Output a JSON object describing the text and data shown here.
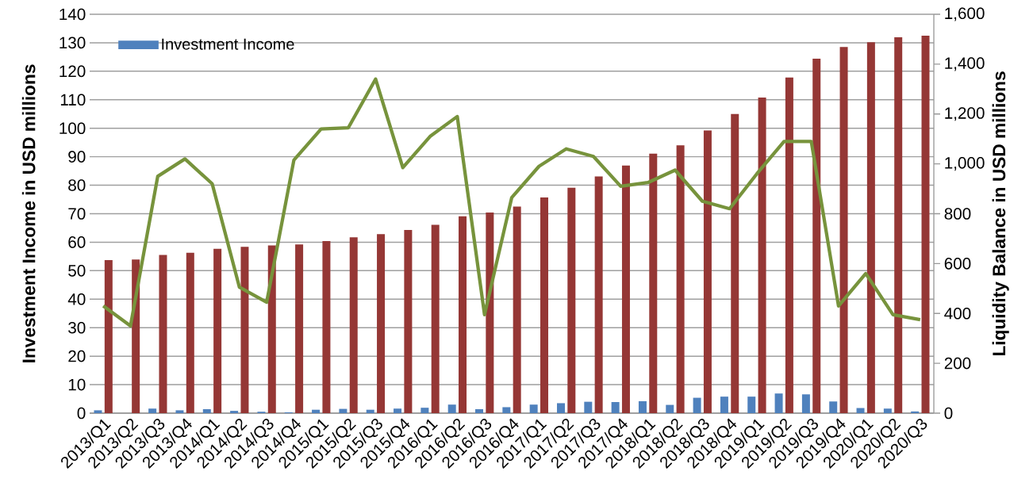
{
  "chart_data": {
    "type": "bar",
    "ylabel": "Investment Income in USD millions",
    "y2label": "Liquidity Balance in USD millions",
    "categories": [
      "2013/Q1",
      "2013/Q2",
      "2013/Q3",
      "2013/Q4",
      "2014/Q1",
      "2014/Q2",
      "2014/Q3",
      "2014/Q4",
      "2015/Q1",
      "2015/Q2",
      "2015/Q3",
      "2015/Q4",
      "2016/Q1",
      "2016/Q2",
      "2016/Q3",
      "2016/Q4",
      "2017/Q1",
      "2017/Q2",
      "2017/Q3",
      "2017/Q4",
      "2018/Q1",
      "2018/Q2",
      "2018/Q3",
      "2018/Q4",
      "2019/Q1",
      "2019/Q2",
      "2019/Q3",
      "2019/Q4",
      "2020/Q1",
      "2020/Q2",
      "2020/Q3"
    ],
    "series": [
      {
        "name": "Investment Income",
        "color": "#4f81bd",
        "values": [
          1.0,
          0,
          1.6,
          1.0,
          1.4,
          0.8,
          0.5,
          0.3,
          1.2,
          1.5,
          1.2,
          1.6,
          1.9,
          3.0,
          1.4,
          2.1,
          3.0,
          3.5,
          4.0,
          3.9,
          4.2,
          2.9,
          5.4,
          5.8,
          5.8,
          6.9,
          6.6,
          4.1,
          1.8,
          1.6,
          0.6
        ]
      },
      {
        "color": "#953735",
        "values": [
          53.7,
          53.9,
          55.5,
          56.3,
          57.7,
          58.4,
          58.9,
          59.2,
          60.4,
          61.7,
          62.8,
          64.3,
          66.1,
          69.1,
          70.4,
          72.5,
          75.7,
          79.1,
          83.1,
          86.9,
          91.1,
          94.0,
          99.2,
          105.0,
          110.8,
          117.8,
          124.4,
          128.5,
          130.2,
          131.9,
          132.5
        ]
      },
      {
        "type": "line",
        "axis": "y2",
        "color": "#77933c",
        "values": [
          430,
          350,
          950,
          1020,
          920,
          505,
          445,
          1015,
          1140,
          1145,
          1340,
          985,
          1110,
          1190,
          395,
          865,
          990,
          1060,
          1030,
          910,
          925,
          975,
          850,
          820,
          960,
          1090,
          1090,
          430,
          560,
          395,
          375
        ]
      }
    ],
    "ylim": [
      0,
      140
    ],
    "yticks": [
      0,
      10,
      20,
      30,
      40,
      50,
      60,
      70,
      80,
      90,
      100,
      110,
      120,
      130,
      140
    ],
    "y2lim": [
      0,
      1600
    ],
    "y2ticks": [
      0,
      200,
      400,
      600,
      800,
      {
        "value": 1000,
        "label": "1,000"
      },
      {
        "value": 1200,
        "label": "1,200"
      },
      {
        "value": 1400,
        "label": "1,400"
      },
      {
        "value": 1600,
        "label": "1,600"
      }
    ],
    "grid": "y",
    "legend": "top left",
    "marker": "none",
    "line_style": "solid"
  }
}
